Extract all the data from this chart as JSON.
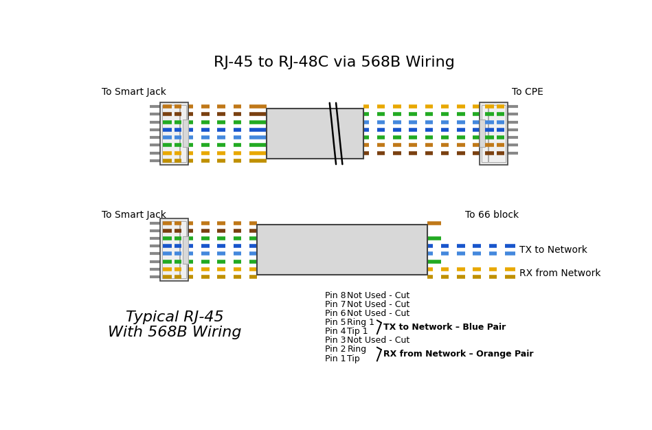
{
  "title": "RJ-45 to RJ-48C via 568B Wiring",
  "top_left_label": "To Smart Jack",
  "top_right_label": "To CPE",
  "bot_left_label": "To Smart Jack",
  "bot_right_label": "To 66 block",
  "tx_label": "TX to Network",
  "rx_label": "RX from Network",
  "typical_line1": "Typical RJ-45",
  "typical_line2": "With 568B Wiring",
  "pin_notes": [
    [
      "Pin 8",
      "Not Used - Cut"
    ],
    [
      "Pin 7",
      "Not Used - Cut"
    ],
    [
      "Pin 6",
      "Not Used - Cut"
    ],
    [
      "Pin 5",
      "Ring 1"
    ],
    [
      "Pin 4",
      "Tip 1"
    ],
    [
      "Pin 3",
      "Not Used - Cut"
    ],
    [
      "Pin 2",
      "Ring"
    ],
    [
      "Pin 1",
      "Tip"
    ]
  ],
  "brace_tx": "TX to Network – Blue Pair",
  "brace_rx": "RX from Network – Orange Pair",
  "bg": "#ffffff",
  "conn_fill": "#e8e8e8",
  "conn_inner": "#f0f0f0",
  "conn_tab": "#d8d8d8",
  "box_fill": "#d8d8d8",
  "border": "#444444",
  "gray_wire": "#888888",
  "left_wire_colors": [
    "#c07818",
    "#7a4010",
    "#22aa22",
    "#1855cc",
    "#4488dd",
    "#22aa22",
    "#e8a800",
    "#c09000"
  ],
  "right_top_colors": [
    "#e8a800",
    "#22aa22",
    "#4488dd",
    "#1855cc",
    "#22aa22",
    "#c07818",
    "#7a4010"
  ]
}
